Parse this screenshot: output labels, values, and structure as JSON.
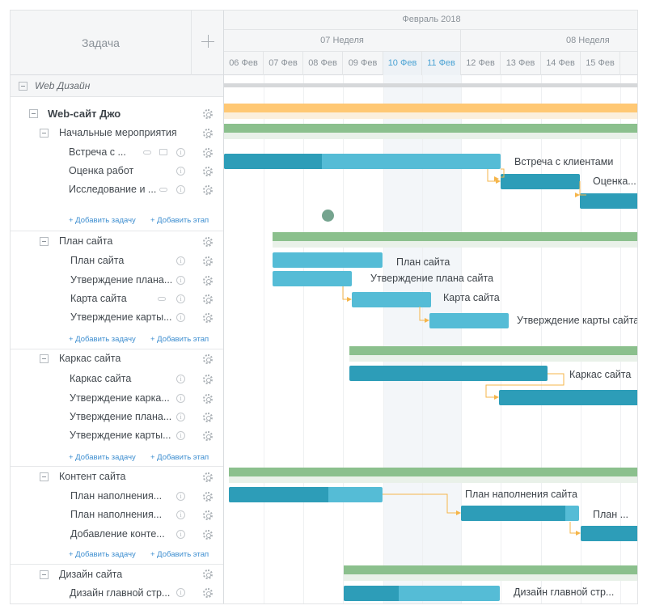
{
  "header": {
    "task_column": "Задача",
    "month": "Февраль 2018",
    "weeks": [
      "07 Неделя",
      "08 Неделя"
    ],
    "days": [
      "06 Фев",
      "07 Фев",
      "08 Фев",
      "09 Фев",
      "10 Фев",
      "11 Фев",
      "12 Фев",
      "13 Фев",
      "14 Фев",
      "15 Фев"
    ],
    "highlight_days": [
      "10 Фев",
      "11 Фев"
    ]
  },
  "tree": {
    "project": "Web Дизайн",
    "site": "Web-сайт Джо",
    "groups": [
      {
        "label": "Начальные мероприятия",
        "tasks": [
          "Встреча с ...",
          "Оценка работ",
          "Исследование и ..."
        ]
      },
      {
        "label": "План сайта",
        "tasks": [
          "План сайта",
          "Утверждение плана...",
          "Карта сайта",
          "Утверждение карты..."
        ]
      },
      {
        "label": "Каркас сайта",
        "tasks": [
          "Каркас сайта",
          "Утверждение карка...",
          "Утверждение плана...",
          "Утверждение карты..."
        ]
      },
      {
        "label": "Контент сайта",
        "tasks": [
          "План наполнения...",
          "План наполнения...",
          "Добавление конте..."
        ]
      },
      {
        "label": "Дизайн сайта",
        "tasks": [
          "Дизайн главной стр..."
        ]
      }
    ],
    "add_task": "+ Добавить задачу",
    "add_stage": "+ Добавить этап"
  },
  "chart": {
    "labels": {
      "meeting": "Встреча с клиентами",
      "estimate": "Оценка...",
      "plan": "План сайта",
      "plan_approval": "Утверждение плана сайта",
      "sitemap": "Карта сайта",
      "sitemap_approval": "Утверждение карты сайта",
      "wireframe": "Каркас сайта",
      "content_plan": "План наполнения сайта",
      "content_plan2": "План ...",
      "home_design": "Дизайн главной стр..."
    }
  },
  "colors": {
    "task_bar": "#55bcd6",
    "task_progress": "#2d9db8",
    "summary_bar": "#8bc08d",
    "project_bar": "#ffc874",
    "link": "#f5b54a",
    "link_text": "#3d8ed0"
  }
}
